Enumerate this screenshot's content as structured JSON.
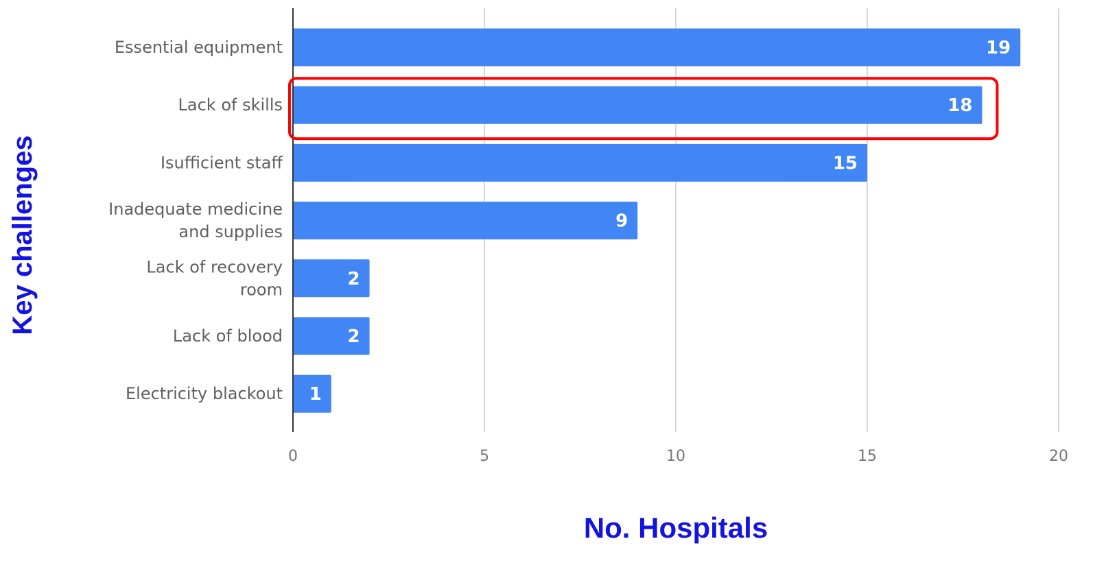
{
  "chart_data": {
    "type": "bar",
    "orientation": "horizontal",
    "categories": [
      [
        "Essential equipment"
      ],
      [
        "Lack of skills"
      ],
      [
        "Isufficient staff"
      ],
      [
        "Inadequate medicine",
        "and supplies"
      ],
      [
        "Lack of recovery",
        "room"
      ],
      [
        "Lack of blood"
      ],
      [
        "Electricity blackout"
      ]
    ],
    "values": [
      19,
      18,
      15,
      9,
      2,
      2,
      1
    ],
    "data_labels": [
      "19",
      "18",
      "15",
      "9",
      "2",
      "2",
      "1"
    ],
    "xlabel": "No. Hospitals",
    "ylabel": "Key challenges",
    "xlim": [
      0,
      20
    ],
    "xticks": [
      "0",
      "5",
      "10",
      "15",
      "20"
    ],
    "grid": "vertical",
    "legend": "none",
    "highlighted_category_index": 1,
    "colors": {
      "bar": "#4285f4",
      "highlight_box": "#ff0000",
      "axis_title": "#1414e0",
      "gridline": "#cccccc",
      "axis_line": "#333333"
    }
  }
}
